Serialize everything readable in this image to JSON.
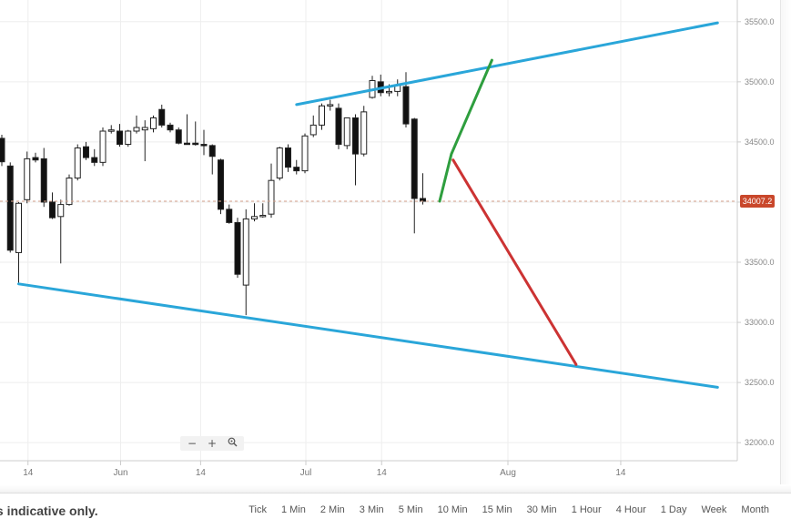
{
  "chart_data": {
    "type": "candlestick",
    "title": "",
    "xlabel": "",
    "ylabel": "",
    "ylim": [
      31850,
      35680
    ],
    "y_ticks": [
      35500,
      35000,
      34500,
      34000,
      33500,
      33000,
      32500,
      32000
    ],
    "y_tick_labels": [
      "35500.0",
      "35000.0",
      "34500.0",
      "34000.0",
      "33500.0",
      "33000.0",
      "32500.0",
      "32000.0"
    ],
    "x_ticks": [
      "14",
      "Jun",
      "14",
      "Jul",
      "14",
      "Aug",
      "14"
    ],
    "current_price": 34007.2,
    "current_price_label": "34007.2",
    "grid": true,
    "candles": [
      {
        "o": 34530,
        "h": 34560,
        "l": 34300,
        "c": 34335,
        "bull": false
      },
      {
        "o": 34300,
        "h": 34330,
        "l": 33580,
        "c": 33600,
        "bull": false
      },
      {
        "o": 33580,
        "h": 34000,
        "l": 33320,
        "c": 33990,
        "bull": true
      },
      {
        "o": 34020,
        "h": 34420,
        "l": 33990,
        "c": 34360,
        "bull": true
      },
      {
        "o": 34370,
        "h": 34410,
        "l": 34330,
        "c": 34350,
        "bull": false
      },
      {
        "o": 34360,
        "h": 34450,
        "l": 33960,
        "c": 34000,
        "bull": false
      },
      {
        "o": 34000,
        "h": 34080,
        "l": 33860,
        "c": 33870,
        "bull": false
      },
      {
        "o": 33880,
        "h": 34020,
        "l": 33490,
        "c": 33980,
        "bull": true
      },
      {
        "o": 33980,
        "h": 34230,
        "l": 33970,
        "c": 34200,
        "bull": true
      },
      {
        "o": 34200,
        "h": 34480,
        "l": 34180,
        "c": 34450,
        "bull": true
      },
      {
        "o": 34460,
        "h": 34500,
        "l": 34350,
        "c": 34370,
        "bull": false
      },
      {
        "o": 34370,
        "h": 34440,
        "l": 34300,
        "c": 34330,
        "bull": false
      },
      {
        "o": 34330,
        "h": 34620,
        "l": 34300,
        "c": 34590,
        "bull": true
      },
      {
        "o": 34590,
        "h": 34640,
        "l": 34570,
        "c": 34600,
        "bull": true
      },
      {
        "o": 34590,
        "h": 34650,
        "l": 34460,
        "c": 34480,
        "bull": false
      },
      {
        "o": 34480,
        "h": 34600,
        "l": 34460,
        "c": 34590,
        "bull": true
      },
      {
        "o": 34590,
        "h": 34720,
        "l": 34570,
        "c": 34620,
        "bull": true
      },
      {
        "o": 34620,
        "h": 34680,
        "l": 34340,
        "c": 34600,
        "bull": true
      },
      {
        "o": 34610,
        "h": 34720,
        "l": 34580,
        "c": 34700,
        "bull": true
      },
      {
        "o": 34770,
        "h": 34810,
        "l": 34620,
        "c": 34640,
        "bull": false
      },
      {
        "o": 34640,
        "h": 34660,
        "l": 34580,
        "c": 34600,
        "bull": false
      },
      {
        "o": 34600,
        "h": 34620,
        "l": 34480,
        "c": 34490,
        "bull": false
      },
      {
        "o": 34490,
        "h": 34730,
        "l": 34480,
        "c": 34480,
        "bull": false
      },
      {
        "o": 34490,
        "h": 34670,
        "l": 34470,
        "c": 34480,
        "bull": false
      },
      {
        "o": 34480,
        "h": 34600,
        "l": 34390,
        "c": 34470,
        "bull": false
      },
      {
        "o": 34470,
        "h": 34480,
        "l": 34230,
        "c": 34380,
        "bull": false
      },
      {
        "o": 34350,
        "h": 34360,
        "l": 33900,
        "c": 33940,
        "bull": false
      },
      {
        "o": 33940,
        "h": 33980,
        "l": 33820,
        "c": 33830,
        "bull": false
      },
      {
        "o": 33830,
        "h": 33870,
        "l": 33370,
        "c": 33400,
        "bull": false
      },
      {
        "o": 33310,
        "h": 33940,
        "l": 33060,
        "c": 33860,
        "bull": true
      },
      {
        "o": 33860,
        "h": 33990,
        "l": 33840,
        "c": 33880,
        "bull": true
      },
      {
        "o": 33880,
        "h": 33990,
        "l": 33870,
        "c": 33890,
        "bull": true
      },
      {
        "o": 33900,
        "h": 34320,
        "l": 33870,
        "c": 34180,
        "bull": true
      },
      {
        "o": 34200,
        "h": 34460,
        "l": 34180,
        "c": 34450,
        "bull": true
      },
      {
        "o": 34450,
        "h": 34480,
        "l": 34250,
        "c": 34290,
        "bull": false
      },
      {
        "o": 34290,
        "h": 34350,
        "l": 34230,
        "c": 34260,
        "bull": false
      },
      {
        "o": 34260,
        "h": 34570,
        "l": 34240,
        "c": 34550,
        "bull": true
      },
      {
        "o": 34560,
        "h": 34720,
        "l": 34540,
        "c": 34640,
        "bull": true
      },
      {
        "o": 34640,
        "h": 34820,
        "l": 34600,
        "c": 34800,
        "bull": true
      },
      {
        "o": 34800,
        "h": 34850,
        "l": 34760,
        "c": 34810,
        "bull": true
      },
      {
        "o": 34780,
        "h": 34820,
        "l": 34440,
        "c": 34480,
        "bull": false
      },
      {
        "o": 34470,
        "h": 34700,
        "l": 34440,
        "c": 34700,
        "bull": true
      },
      {
        "o": 34700,
        "h": 34730,
        "l": 34140,
        "c": 34400,
        "bull": false
      },
      {
        "o": 34400,
        "h": 34800,
        "l": 34380,
        "c": 34750,
        "bull": true
      },
      {
        "o": 34870,
        "h": 35050,
        "l": 34860,
        "c": 35010,
        "bull": true
      },
      {
        "o": 35000,
        "h": 35060,
        "l": 34880,
        "c": 34910,
        "bull": false
      },
      {
        "o": 34920,
        "h": 34980,
        "l": 34880,
        "c": 34920,
        "bull": true
      },
      {
        "o": 34920,
        "h": 35020,
        "l": 34880,
        "c": 34970,
        "bull": true
      },
      {
        "o": 34960,
        "h": 35080,
        "l": 34620,
        "c": 34650,
        "bull": false
      },
      {
        "o": 34690,
        "h": 34700,
        "l": 33740,
        "c": 34030,
        "bull": false
      },
      {
        "o": 34030,
        "h": 34240,
        "l": 33980,
        "c": 34007,
        "bull": false
      }
    ],
    "annotations": [
      {
        "type": "trendline",
        "color": "#2aa6d9",
        "points": [
          [
            35,
            34810
          ],
          [
            85,
            35490
          ]
        ]
      },
      {
        "type": "trendline",
        "color": "#2aa6d9",
        "points": [
          [
            2,
            33320
          ],
          [
            85,
            32460
          ]
        ]
      },
      {
        "type": "projection",
        "color": "#2e9e3e",
        "points": [
          [
            52,
            34007
          ],
          [
            53.4,
            34400
          ],
          [
            58.2,
            35180
          ]
        ]
      },
      {
        "type": "projection",
        "color": "#cc3333",
        "points": [
          [
            53.6,
            34350
          ],
          [
            68.2,
            32650
          ]
        ]
      }
    ]
  },
  "zoom": {
    "minus_glyph": "−",
    "plus_glyph": "+",
    "reset_icon": "magnifier-icon"
  },
  "footer": {
    "disclaimer": "is indicative only.",
    "intervals": [
      "Tick",
      "1 Min",
      "2 Min",
      "3 Min",
      "5 Min",
      "10 Min",
      "15 Min",
      "30 Min",
      "1 Hour",
      "4 Hour",
      "1 Day",
      "Week",
      "Month"
    ]
  }
}
